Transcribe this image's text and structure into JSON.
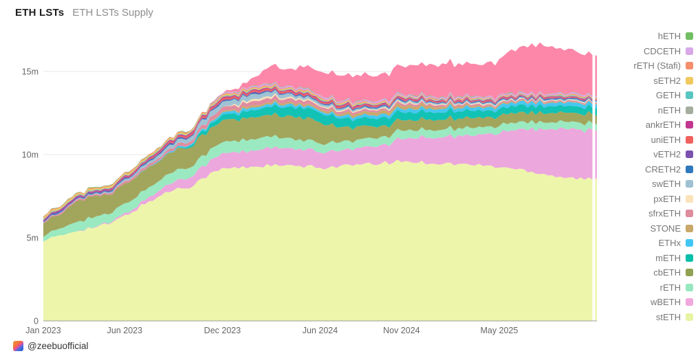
{
  "header": {
    "title": "ETH LSTs",
    "subtitle": "ETH LSTs Supply"
  },
  "footer": {
    "handle": "@zeebuofficial",
    "logo": "zeebu-logo"
  },
  "legend": {
    "position": "right",
    "items": [
      {
        "label": "hETH",
        "color": "#71BE63"
      },
      {
        "label": "CDCETH",
        "color": "#D8A8E8"
      },
      {
        "label": "rETH (Stafi)",
        "color": "#F48E6D"
      },
      {
        "label": "sETH2",
        "color": "#F0C85E"
      },
      {
        "label": "GETH",
        "color": "#58C5C0"
      },
      {
        "label": "nETH",
        "color": "#A5AD9E"
      },
      {
        "label": "ankrETH",
        "color": "#C2368F"
      },
      {
        "label": "uniETH",
        "color": "#F0605D"
      },
      {
        "label": "vETH2",
        "color": "#7A52AE"
      },
      {
        "label": "CRETH2",
        "color": "#3078BC"
      },
      {
        "label": "swETH",
        "color": "#9EC1D3"
      },
      {
        "label": "pxETH",
        "color": "#FAE2BA"
      },
      {
        "label": "sfrxETH",
        "color": "#DE8C9E"
      },
      {
        "label": "STONE",
        "color": "#C8A86B"
      },
      {
        "label": "ETHx",
        "color": "#40C6F5"
      },
      {
        "label": "mETH",
        "color": "#06BFA8"
      },
      {
        "label": "cbETH",
        "color": "#90A152"
      },
      {
        "label": "rETH",
        "color": "#98E8BF"
      },
      {
        "label": "wBETH",
        "color": "#F0A8DC"
      },
      {
        "label": "stETH",
        "color": "#E8F4A3"
      }
    ]
  },
  "chart_data": {
    "type": "area",
    "stacked": true,
    "title": "ETH LSTs Supply",
    "unit": "millions of ETH",
    "grid": "horizontal",
    "legend_position": "right",
    "ylim": [
      0,
      17.3
    ],
    "y_ticks": [
      {
        "value": 0,
        "label": "0"
      },
      {
        "value": 5,
        "label": "5m"
      },
      {
        "value": 10,
        "label": "10m"
      },
      {
        "value": 15,
        "label": "15m"
      }
    ],
    "x_tick_marks": [
      {
        "month_index": 0,
        "label": "Jan 2023"
      },
      {
        "month_index": 5,
        "label": "Jun 2023"
      },
      {
        "month_index": 11,
        "label": "Dec 2023"
      },
      {
        "month_index": 17,
        "label": "Jun 2024"
      },
      {
        "month_index": 22,
        "label": "Nov 2024"
      },
      {
        "month_index": 28,
        "label": "May 2025"
      }
    ],
    "months": [
      "2023-01",
      "2023-02",
      "2023-03",
      "2023-04",
      "2023-05",
      "2023-06",
      "2023-07",
      "2023-08",
      "2023-09",
      "2023-10",
      "2023-11",
      "2023-12",
      "2024-01",
      "2024-02",
      "2024-03",
      "2024-04",
      "2024-05",
      "2024-06",
      "2024-07",
      "2024-08",
      "2024-09",
      "2024-10",
      "2024-11",
      "2024-12",
      "2025-01",
      "2025-02",
      "2025-03",
      "2025-04",
      "2025-05",
      "2025-06",
      "2025-07",
      "2025-08",
      "2025-09",
      "2025-10",
      "2025-11"
    ],
    "series_order": "bottom-to-top",
    "series": [
      {
        "name": "stETH",
        "color": "#EDF5AA",
        "values": [
          4.9,
          5.05,
          5.45,
          5.6,
          5.8,
          6.3,
          6.9,
          7.45,
          7.9,
          8.1,
          8.7,
          9.15,
          9.2,
          9.3,
          9.35,
          9.3,
          9.28,
          9.2,
          9.3,
          9.35,
          9.4,
          9.5,
          9.6,
          9.55,
          9.5,
          9.45,
          9.4,
          9.35,
          9.25,
          9.15,
          9.0,
          8.8,
          8.65,
          8.55,
          8.5
        ]
      },
      {
        "name": "wBETH",
        "color": "#ECA7DD",
        "values": [
          0,
          0,
          0,
          0.02,
          0.06,
          0.12,
          0.2,
          0.35,
          0.5,
          0.6,
          0.75,
          0.9,
          0.95,
          1.0,
          1.1,
          1.0,
          1.0,
          0.95,
          0.95,
          0.95,
          1.0,
          1.1,
          1.35,
          1.5,
          1.55,
          1.65,
          1.75,
          1.85,
          2.1,
          2.35,
          2.6,
          2.8,
          2.9,
          2.9,
          2.9
        ]
      },
      {
        "name": "rETH",
        "color": "#9AE9C1",
        "values": [
          0.3,
          0.4,
          0.55,
          0.6,
          0.55,
          0.58,
          0.6,
          0.6,
          0.62,
          0.62,
          0.65,
          0.68,
          0.7,
          0.7,
          0.68,
          0.6,
          0.56,
          0.54,
          0.52,
          0.5,
          0.5,
          0.5,
          0.5,
          0.48,
          0.48,
          0.47,
          0.46,
          0.45,
          0.45,
          0.44,
          0.43,
          0.42,
          0.42,
          0.41,
          0.41
        ]
      },
      {
        "name": "cbETH",
        "color": "#A2A55C",
        "values": [
          0.8,
          0.85,
          1.25,
          1.25,
          1.15,
          1.15,
          1.18,
          1.2,
          1.22,
          1.24,
          1.26,
          1.28,
          1.3,
          1.3,
          1.28,
          1.32,
          1.32,
          1.32,
          0.95,
          0.8,
          0.72,
          0.66,
          0.62,
          0.6,
          0.6,
          0.59,
          0.58,
          0.57,
          0.57,
          0.56,
          0.56,
          0.55,
          0.55,
          0.55,
          0.55
        ]
      },
      {
        "name": "mETH",
        "color": "#12C2B4",
        "values": [
          0,
          0,
          0,
          0,
          0,
          0,
          0,
          0,
          0,
          0.1,
          0.25,
          0.3,
          0.35,
          0.45,
          0.5,
          0.55,
          0.6,
          0.62,
          0.55,
          0.5,
          0.48,
          0.48,
          0.48,
          0.48,
          0.48,
          0.46,
          0.44,
          0.42,
          0.42,
          0.42,
          0.43,
          0.42,
          0.41,
          0.41,
          0.41
        ]
      },
      {
        "name": "ETHx",
        "color": "#45C7F2",
        "values": [
          0,
          0,
          0,
          0,
          0,
          0,
          0.02,
          0.04,
          0.06,
          0.08,
          0.1,
          0.12,
          0.14,
          0.15,
          0.15,
          0.14,
          0.13,
          0.12,
          0.14,
          0.16,
          0.18,
          0.19,
          0.2,
          0.2,
          0.2,
          0.2,
          0.2,
          0.2,
          0.2,
          0.2,
          0.2,
          0.2,
          0.2,
          0.2,
          0.2
        ]
      },
      {
        "name": "STONE",
        "color": "#C9A96B",
        "values": [
          0,
          0,
          0,
          0,
          0,
          0,
          0,
          0,
          0,
          0,
          0.04,
          0.08,
          0.1,
          0.12,
          0.12,
          0.11,
          0.1,
          0.1,
          0.12,
          0.15,
          0.18,
          0.19,
          0.2,
          0.18,
          0.15,
          0.12,
          0.1,
          0.08,
          0.07,
          0.06,
          0.05,
          0.05,
          0.04,
          0.04,
          0.04
        ]
      },
      {
        "name": "sfrxETH",
        "color": "#E08CA0",
        "values": [
          0.06,
          0.07,
          0.08,
          0.09,
          0.1,
          0.12,
          0.14,
          0.16,
          0.18,
          0.2,
          0.22,
          0.24,
          0.25,
          0.25,
          0.24,
          0.22,
          0.2,
          0.18,
          0.16,
          0.14,
          0.13,
          0.12,
          0.12,
          0.11,
          0.1,
          0.1,
          0.09,
          0.09,
          0.08,
          0.08,
          0.08,
          0.07,
          0.07,
          0.07,
          0.07
        ]
      },
      {
        "name": "pxETH",
        "color": "#F7E0B8",
        "values": [
          0,
          0,
          0,
          0,
          0,
          0,
          0,
          0,
          0,
          0,
          0,
          0,
          0.08,
          0.12,
          0.12,
          0.1,
          0.08,
          0.07,
          0.06,
          0.06,
          0.06,
          0.06,
          0.06,
          0.06,
          0.05,
          0.05,
          0.05,
          0.05,
          0.04,
          0.04,
          0.04,
          0.04,
          0.04,
          0.04,
          0.04
        ]
      },
      {
        "name": "swETH",
        "color": "#9FC3D4",
        "values": [
          0.02,
          0.03,
          0.04,
          0.05,
          0.07,
          0.1,
          0.14,
          0.18,
          0.22,
          0.26,
          0.3,
          0.32,
          0.3,
          0.28,
          0.25,
          0.2,
          0.15,
          0.12,
          0.1,
          0.09,
          0.08,
          0.08,
          0.08,
          0.08,
          0.07,
          0.07,
          0.06,
          0.06,
          0.06,
          0.05,
          0.05,
          0.05,
          0.05,
          0.05,
          0.05
        ]
      },
      {
        "name": "CRETH2",
        "color": "#2F77BB",
        "values": [
          0.04,
          0.04,
          0.04,
          0.04,
          0.04,
          0.04,
          0.04,
          0.04,
          0.04,
          0.04,
          0.04,
          0.04,
          0.04,
          0.04,
          0.04,
          0.04,
          0.04,
          0.04,
          0.04,
          0.04,
          0.04,
          0.04,
          0.04,
          0.04,
          0.04,
          0.04,
          0.04,
          0.04,
          0.04,
          0.04,
          0.04,
          0.04,
          0.04,
          0.04,
          0.04
        ]
      },
      {
        "name": "vETH2",
        "color": "#7A52AE",
        "values": [
          0.07,
          0.07,
          0.07,
          0.07,
          0.06,
          0.06,
          0.06,
          0.06,
          0.05,
          0.05,
          0.05,
          0.05,
          0.05,
          0.05,
          0.05,
          0.04,
          0.04,
          0.04,
          0.04,
          0.04,
          0.04,
          0.04,
          0.04,
          0.04,
          0.03,
          0.03,
          0.03,
          0.03,
          0.03,
          0.03,
          0.03,
          0.03,
          0.03,
          0.03,
          0.03
        ]
      },
      {
        "name": "uniETH",
        "color": "#EF615E",
        "values": [
          0,
          0,
          0,
          0.01,
          0.02,
          0.03,
          0.05,
          0.07,
          0.08,
          0.09,
          0.1,
          0.1,
          0.1,
          0.1,
          0.1,
          0.09,
          0.09,
          0.08,
          0.08,
          0.07,
          0.07,
          0.06,
          0.06,
          0.06,
          0.06,
          0.05,
          0.05,
          0.05,
          0.05,
          0.05,
          0.05,
          0.05,
          0.05,
          0.05,
          0.05
        ]
      },
      {
        "name": "ankrETH",
        "color": "#C2368F",
        "values": [
          0.06,
          0.06,
          0.06,
          0.06,
          0.06,
          0.06,
          0.06,
          0.06,
          0.06,
          0.06,
          0.06,
          0.06,
          0.06,
          0.06,
          0.05,
          0.05,
          0.05,
          0.05,
          0.05,
          0.05,
          0.05,
          0.05,
          0.05,
          0.05,
          0.05,
          0.04,
          0.04,
          0.04,
          0.04,
          0.04,
          0.04,
          0.04,
          0.04,
          0.04,
          0.04
        ]
      },
      {
        "name": "nETH",
        "color": "#A5AD9E",
        "values": [
          0.03,
          0.03,
          0.03,
          0.03,
          0.03,
          0.03,
          0.03,
          0.03,
          0.03,
          0.03,
          0.03,
          0.03,
          0.03,
          0.03,
          0.03,
          0.03,
          0.03,
          0.03,
          0.03,
          0.03,
          0.03,
          0.03,
          0.03,
          0.03,
          0.03,
          0.03,
          0.03,
          0.03,
          0.03,
          0.03,
          0.03,
          0.03,
          0.03,
          0.03,
          0.03
        ]
      },
      {
        "name": "GETH",
        "color": "#58C5C0",
        "values": [
          0.02,
          0.02,
          0.02,
          0.02,
          0.02,
          0.02,
          0.02,
          0.02,
          0.02,
          0.02,
          0.02,
          0.02,
          0.02,
          0.02,
          0.02,
          0.02,
          0.02,
          0.02,
          0.02,
          0.02,
          0.02,
          0.02,
          0.02,
          0.02,
          0.02,
          0.02,
          0.02,
          0.02,
          0.02,
          0.02,
          0.02,
          0.02,
          0.02,
          0.02,
          0.02
        ]
      },
      {
        "name": "sETH2",
        "color": "#EFC75F",
        "values": [
          0.1,
          0.1,
          0.1,
          0.09,
          0.09,
          0.09,
          0.08,
          0.08,
          0.08,
          0.07,
          0.07,
          0.07,
          0.06,
          0.06,
          0.06,
          0.05,
          0.05,
          0.05,
          0.04,
          0.04,
          0.04,
          0.04,
          0.03,
          0.03,
          0.03,
          0.03,
          0.03,
          0.03,
          0.02,
          0.02,
          0.02,
          0.02,
          0.02,
          0.02,
          0.02
        ]
      },
      {
        "name": "rETH (Stafi)",
        "color": "#F28E6C",
        "values": [
          0.05,
          0.05,
          0.05,
          0.05,
          0.05,
          0.05,
          0.05,
          0.05,
          0.05,
          0.05,
          0.05,
          0.05,
          0.05,
          0.05,
          0.05,
          0.05,
          0.05,
          0.05,
          0.04,
          0.04,
          0.04,
          0.04,
          0.04,
          0.04,
          0.04,
          0.04,
          0.04,
          0.04,
          0.04,
          0.04,
          0.04,
          0.04,
          0.04,
          0.04,
          0.04
        ]
      },
      {
        "name": "CDCETH",
        "color": "#D7A7E7",
        "values": [
          0,
          0,
          0,
          0,
          0,
          0,
          0,
          0,
          0,
          0,
          0.02,
          0.05,
          0.07,
          0.08,
          0.09,
          0.09,
          0.09,
          0.09,
          0.09,
          0.09,
          0.09,
          0.09,
          0.09,
          0.09,
          0.08,
          0.08,
          0.08,
          0.08,
          0.08,
          0.08,
          0.08,
          0.08,
          0.08,
          0.08,
          0.08
        ]
      },
      {
        "name": "hETH",
        "color": "#72BE64",
        "values": [
          0.02,
          0.02,
          0.02,
          0.02,
          0.02,
          0.02,
          0.02,
          0.02,
          0.02,
          0.02,
          0.02,
          0.02,
          0.02,
          0.02,
          0.02,
          0.02,
          0.02,
          0.02,
          0.02,
          0.02,
          0.02,
          0.02,
          0.02,
          0.02,
          0.02,
          0.02,
          0.02,
          0.02,
          0.02,
          0.02,
          0.02,
          0.02,
          0.02,
          0.02,
          0.02
        ]
      },
      {
        "name": "unlabeled",
        "legend_visible": false,
        "color": "#FC87A9",
        "values": [
          0,
          0,
          0,
          0,
          0,
          0,
          0,
          0,
          0,
          0,
          0,
          0.05,
          0.2,
          0.5,
          1.1,
          1.0,
          1.3,
          1.45,
          1.5,
          1.55,
          1.55,
          1.6,
          1.7,
          1.8,
          1.9,
          1.95,
          1.9,
          1.95,
          2.2,
          2.6,
          2.95,
          2.8,
          2.7,
          2.5,
          2.4
        ]
      }
    ],
    "note": "topmost pink band has no matching swatch in the visible legend"
  }
}
